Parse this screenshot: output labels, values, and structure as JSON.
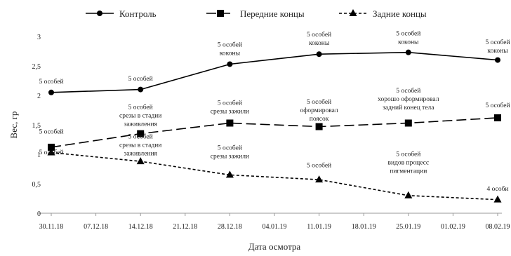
{
  "chart_data": {
    "type": "line",
    "xlabel": "Дата осмотра",
    "ylabel": "Вес, гр",
    "ylim": [
      0,
      3
    ],
    "yticks": [
      "0",
      "0,5",
      "1",
      "1,5",
      "2",
      "2,5",
      "3"
    ],
    "x": [
      "30.11.18",
      "07.12.18",
      "14.12.18",
      "21.12.18",
      "28.12.18",
      "04.01.19",
      "11.01.19",
      "18.01.19",
      "25.01.19",
      "01.02.19",
      "08.02.19"
    ],
    "grid": false,
    "legend_position": "top",
    "series": [
      {
        "name": "Контроль",
        "marker": "circle",
        "dash": "solid",
        "points": [
          {
            "x": "30.11.18",
            "y": 2.05
          },
          {
            "x": "14.12.18",
            "y": 2.1
          },
          {
            "x": "28.12.18",
            "y": 2.53
          },
          {
            "x": "11.01.19",
            "y": 2.7
          },
          {
            "x": "25.01.19",
            "y": 2.73
          },
          {
            "x": "08.02.19",
            "y": 2.6
          }
        ]
      },
      {
        "name": "Передние концы",
        "marker": "square",
        "dash": "long",
        "points": [
          {
            "x": "30.11.18",
            "y": 1.12
          },
          {
            "x": "14.12.18",
            "y": 1.35
          },
          {
            "x": "28.12.18",
            "y": 1.53
          },
          {
            "x": "11.01.19",
            "y": 1.47
          },
          {
            "x": "25.01.19",
            "y": 1.53
          },
          {
            "x": "08.02.19",
            "y": 1.62
          }
        ]
      },
      {
        "name": "Задние концы",
        "marker": "triangle",
        "dash": "short",
        "points": [
          {
            "x": "30.11.18",
            "y": 1.03
          },
          {
            "x": "14.12.18",
            "y": 0.88
          },
          {
            "x": "28.12.18",
            "y": 0.65
          },
          {
            "x": "11.01.19",
            "y": 0.57
          },
          {
            "x": "25.01.19",
            "y": 0.3
          },
          {
            "x": "08.02.19",
            "y": 0.23
          }
        ]
      }
    ],
    "annotations": [
      {
        "lines": [
          "5 особей"
        ],
        "x": "30.11.18",
        "y": 2.2
      },
      {
        "lines": [
          "5 особей"
        ],
        "x": "14.12.18",
        "y": 2.25
      },
      {
        "lines": [
          "5 особей",
          "коконы"
        ],
        "x": "28.12.18",
        "y": 2.83
      },
      {
        "lines": [
          "5 особей",
          "коконы"
        ],
        "x": "11.01.19",
        "y": 3.0
      },
      {
        "lines": [
          "5 особей",
          "коконы"
        ],
        "x": "25.01.19",
        "y": 3.02
      },
      {
        "lines": [
          "5 особей",
          "коконы"
        ],
        "x": "08.02.19",
        "y": 2.87
      },
      {
        "lines": [
          "5 особей"
        ],
        "x": "30.11.18",
        "y": 1.35
      },
      {
        "lines": [
          "5 особей",
          "срезы в стадии",
          "заживления"
        ],
        "x": "14.12.18",
        "y": 1.77
      },
      {
        "lines": [
          "5 особей",
          "срезы зажили"
        ],
        "x": "28.12.18",
        "y": 1.84
      },
      {
        "lines": [
          "5 особей",
          "оформировал",
          "поясок"
        ],
        "x": "11.01.19",
        "y": 1.86
      },
      {
        "lines": [
          "5 особей",
          "хорошо оформировал",
          "задний конец тела"
        ],
        "x": "25.01.19",
        "y": 2.05
      },
      {
        "lines": [
          "5 особей"
        ],
        "x": "08.02.19",
        "y": 1.8
      },
      {
        "lines": [
          "5 особей"
        ],
        "x": "30.11.18",
        "y": 1.0
      },
      {
        "lines": [
          "5 особей",
          "срезы в стадии",
          "заживления"
        ],
        "x": "14.12.18",
        "y": 1.27
      },
      {
        "lines": [
          "5 особей",
          "срезы зажили"
        ],
        "x": "28.12.18",
        "y": 1.08
      },
      {
        "lines": [
          "5 особей"
        ],
        "x": "11.01.19",
        "y": 0.78
      },
      {
        "lines": [
          "5 особей",
          "видов процесс",
          "пигментации"
        ],
        "x": "25.01.19",
        "y": 0.97
      },
      {
        "lines": [
          "4 особи"
        ],
        "x": "08.02.19",
        "y": 0.38
      }
    ]
  }
}
